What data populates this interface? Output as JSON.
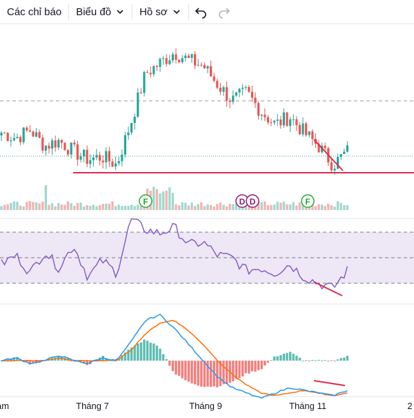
{
  "toolbar": {
    "indicators_label": "Các chỉ báo",
    "chart_label": "Biểu đồ",
    "profile_label": "Hồ sơ",
    "undo_icon": "undo-icon",
    "redo_icon": "redo-icon"
  },
  "colors": {
    "up": "#26a69a",
    "down": "#ef5350",
    "support_line": "#e0294a",
    "rsi_line": "#7e57c2",
    "rsi_band": "#ede7f6",
    "macd_line": "#2196f3",
    "signal_line": "#ff6d00",
    "volume_up": "#9fd9cf",
    "volume_down": "#f7b2b0",
    "earnings_badge": "#22ab36",
    "dividend_badge": "#8e1b6e"
  },
  "badges": [
    {
      "letter": "F",
      "kind": "earnings"
    },
    {
      "letter": "D",
      "kind": "dividend"
    },
    {
      "letter": "D",
      "kind": "dividend"
    },
    {
      "letter": "F",
      "kind": "earnings"
    }
  ],
  "x_axis_labels": [
    "am",
    "Tháng 7",
    "Tháng 9",
    "Tháng 11",
    "2"
  ],
  "chart_data": {
    "type": "candlestick",
    "panes": [
      "price",
      "volume",
      "rsi",
      "macd"
    ],
    "x_axis": [
      "Tháng 7",
      "Tháng 9",
      "Tháng 11"
    ],
    "price_close_trend": [
      40,
      38,
      41,
      35,
      37,
      33,
      30,
      31,
      28,
      44,
      62,
      66,
      70,
      67,
      65,
      58,
      52,
      55,
      48,
      43,
      46,
      40,
      35,
      28,
      33
    ],
    "rsi": [
      45,
      52,
      38,
      55,
      42,
      60,
      35,
      48,
      38,
      80,
      72,
      69,
      74,
      60,
      62,
      52,
      50,
      40,
      42,
      38,
      45,
      35,
      30,
      26,
      40
    ],
    "macd": [
      0,
      1,
      -1,
      0,
      2,
      0,
      -1,
      1,
      0,
      7,
      15,
      17,
      12,
      6,
      0,
      -6,
      -10,
      -12,
      -14,
      -12,
      -10,
      -11,
      -12,
      -13,
      -11
    ],
    "signal": [
      0,
      0,
      0,
      0,
      1,
      0,
      0,
      0,
      0,
      4,
      10,
      14,
      15,
      11,
      6,
      0,
      -5,
      -9,
      -12,
      -13,
      -12,
      -11,
      -12,
      -13,
      -12
    ],
    "grid": true
  }
}
